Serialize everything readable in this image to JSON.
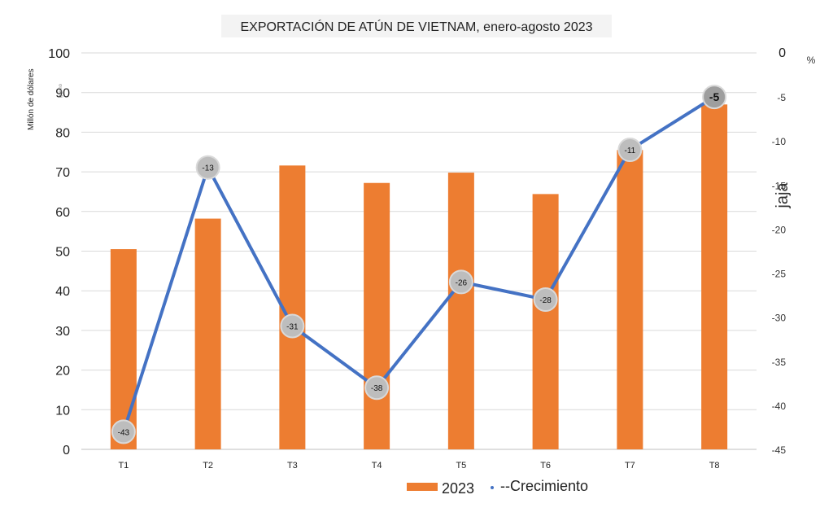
{
  "chart_data": {
    "type": "bar",
    "title": "EXPORTACIÓN DE ATÚN DE VIETNAM, enero-agosto 2023",
    "categories": [
      "T1",
      "T2",
      "T3",
      "T4",
      "T5",
      "T6",
      "T7",
      "T8"
    ],
    "series": [
      {
        "name": "2023",
        "type": "bar",
        "axis": "left",
        "color": "#ED7D31",
        "values": [
          50.5,
          58.2,
          71.6,
          67.2,
          69.8,
          64.4,
          75.5,
          87
        ]
      },
      {
        "name": "--Crecimiento",
        "type": "line",
        "axis": "right",
        "color": "#4472C4",
        "values": [
          -43,
          -13,
          -31,
          -38,
          -26,
          -28,
          -11,
          -5
        ],
        "labels": [
          "-43",
          "-13",
          "-31",
          "-38",
          "-26",
          "-28",
          "-11",
          "-5"
        ]
      }
    ],
    "ylim_left": [
      0,
      100
    ],
    "yticks_left": [
      "0",
      "10",
      "20",
      "30",
      "40",
      "50",
      "60",
      "70",
      "80",
      "90",
      "100"
    ],
    "ylim_right": [
      -45,
      0
    ],
    "yticks_right": [
      "0",
      "-5",
      "-10",
      "-15",
      "-20",
      "-25",
      "-30",
      "-35",
      "-40",
      "-45"
    ],
    "ylabel_left": "Millón de dólares",
    "ylabel_left_small": "gramo",
    "ylabel_right": "jaja",
    "ylabel_right_unit": "%",
    "grid": true,
    "legend": "bottom"
  }
}
